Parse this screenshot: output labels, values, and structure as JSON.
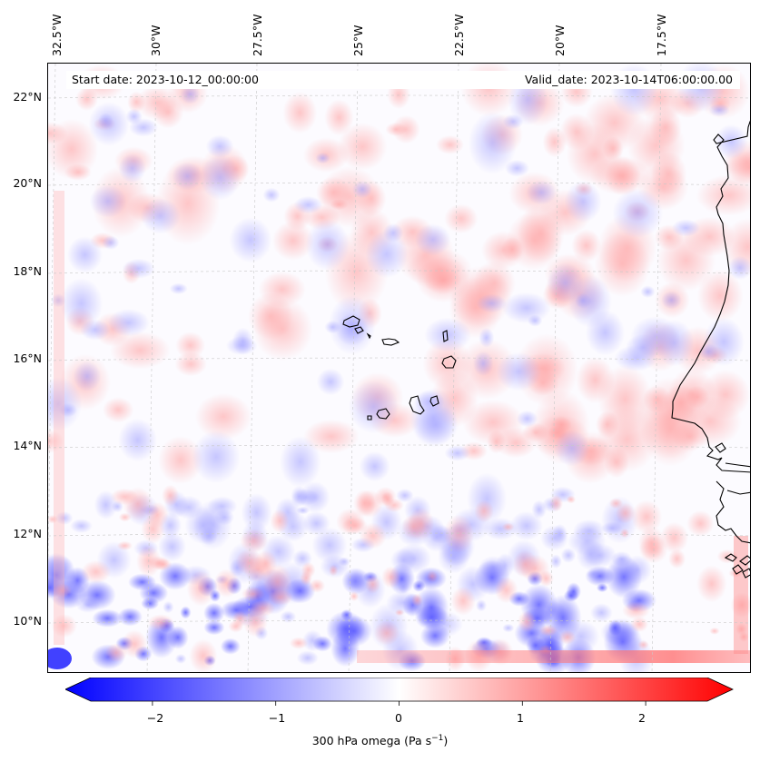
{
  "map": {
    "start_date": "Start date: 2023-10-12_00:00:00",
    "valid_date": "Valid_date: 2023-10-14T06:00:00.00",
    "lon_ticks": [
      "32.5°W",
      "30°W",
      "27.5°W",
      "25°W",
      "22.5°W",
      "20°W",
      "17.5°W"
    ],
    "lat_ticks": [
      "22°N",
      "20°N",
      "18°N",
      "16°N",
      "14°N",
      "12°N",
      "10°N"
    ],
    "colormap": {
      "low": "#0000ff",
      "mid": "#ffffff",
      "high": "#ff0000"
    },
    "coastline_color": "#000000",
    "gridline_color": "#c8c8c8"
  },
  "colorbar": {
    "min": -2.5,
    "max": 2.5,
    "ticks": [
      "−2",
      "−1",
      "0",
      "1",
      "2"
    ],
    "label_main": "300 hPa omega (Pa s",
    "label_exp": "−1",
    "label_close": ")"
  }
}
